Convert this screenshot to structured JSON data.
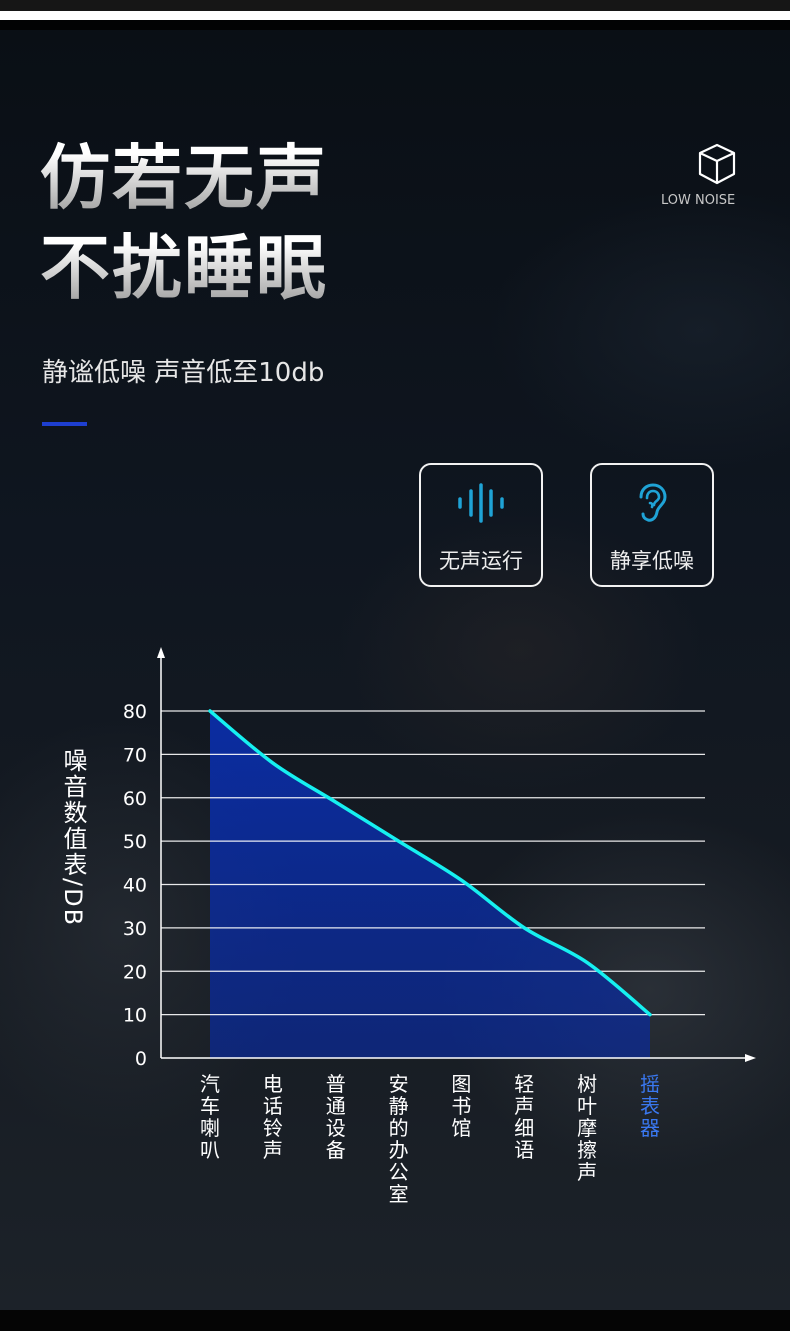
{
  "header": {
    "title_line1": "仿若无声",
    "title_line2": "不扰睡眠",
    "subtitle": "静谧低噪 声音低至10db",
    "badge_icon": "cube-icon",
    "badge_label": "LOW NOISE"
  },
  "features": [
    {
      "icon": "sound-wave-icon",
      "label": "无声运行"
    },
    {
      "icon": "ear-icon",
      "label": "静享低噪"
    }
  ],
  "colors": {
    "accent": "#1e3fd0",
    "icon": "#1fa3d6",
    "curve": "#16f0f0",
    "fill": "#0a2fb0",
    "highlight": "#3a78f0"
  },
  "chart_data": {
    "type": "area",
    "ylabel": "噪音数值表/DB",
    "xlabel": "",
    "categories": [
      "汽车喇叭",
      "电话铃声",
      "普通设备",
      "安静的办公室",
      "图书馆",
      "轻声细语",
      "树叶摩擦声",
      "摇表器"
    ],
    "values": [
      80,
      68,
      59,
      50,
      41,
      30,
      22,
      10
    ],
    "yticks": [
      "0",
      "10",
      "20",
      "30",
      "40",
      "50",
      "60",
      "70",
      "80"
    ],
    "ylim": [
      0,
      80
    ],
    "grid": true,
    "highlight_category": "摇表器"
  }
}
